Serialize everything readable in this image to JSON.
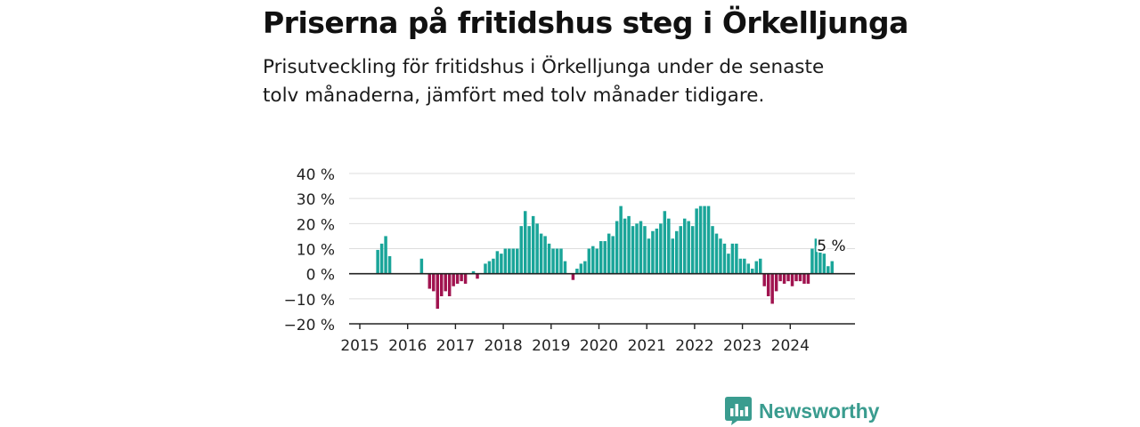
{
  "title": "Priserna på fritidshus steg i Örkelljunga",
  "subtitle": "Prisutveckling för fritidshus i Örkelljunga under de senaste tolv månaderna, jämfört med tolv månader tidigare.",
  "brand": "Newsworthy",
  "colors": {
    "positive": "#1aa599",
    "negative": "#a0134f",
    "grid": "#dddddd",
    "axis": "#222222",
    "brand": "#3a9c8f"
  },
  "chart_data": {
    "type": "bar",
    "title": "Priserna på fritidshus steg i Örkelljunga",
    "unit": "%",
    "ylim": [
      -20,
      40
    ],
    "yticks": [
      40,
      30,
      20,
      10,
      0,
      -10,
      -20
    ],
    "ytick_labels": [
      "40 %",
      "30 %",
      "20 %",
      "10 %",
      "0 %",
      "−10 %",
      "−20 %"
    ],
    "xtick_labels": [
      "2015",
      "2016",
      "2017",
      "2018",
      "2019",
      "2020",
      "2021",
      "2022",
      "2023",
      "2024"
    ],
    "x_start": "2015-01",
    "grid": true,
    "last_value_label": "5 %",
    "values": [
      null,
      null,
      null,
      null,
      9.5,
      12,
      15,
      7,
      null,
      null,
      null,
      null,
      null,
      null,
      null,
      6,
      null,
      -6,
      -7,
      -14,
      -9,
      -7,
      -9,
      -5,
      -4,
      -3,
      -4,
      null,
      1,
      -2,
      null,
      4,
      5,
      6,
      9,
      8,
      10,
      10,
      10,
      10,
      19,
      25,
      19,
      23,
      20,
      16,
      15,
      12,
      10,
      10,
      10,
      5,
      null,
      -2.5,
      2,
      4,
      5,
      10,
      11,
      10,
      13,
      13,
      16,
      15,
      21,
      27,
      22,
      23,
      19,
      20,
      21,
      19,
      14,
      17,
      18,
      20,
      25,
      22,
      14,
      17,
      19,
      22,
      21,
      19,
      26,
      27,
      27,
      27,
      19,
      16,
      14,
      12,
      8,
      12,
      12,
      6,
      6,
      4,
      2,
      5,
      6,
      -5,
      -9,
      -12,
      -7,
      -3,
      -4,
      -3,
      -5,
      -3,
      -3,
      -4,
      -4,
      10,
      14,
      9,
      8,
      3,
      5
    ]
  }
}
